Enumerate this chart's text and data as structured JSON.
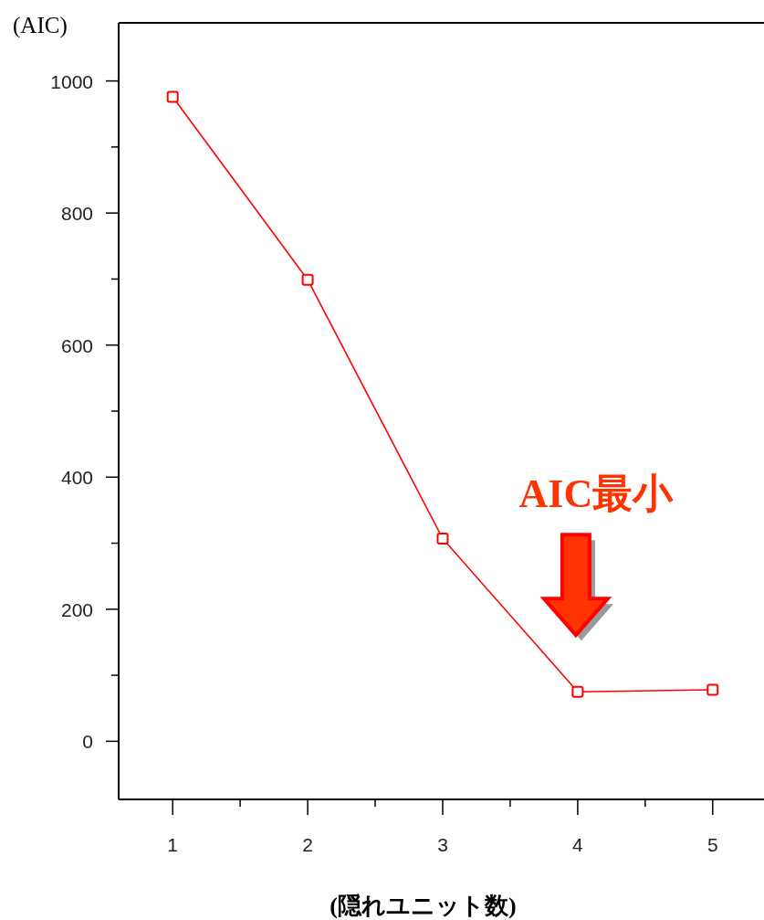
{
  "chart_data": {
    "type": "line",
    "xlabel": "(隠れユニット数)",
    "ylabel": "(AIC)",
    "x": [
      1,
      2,
      3,
      4,
      5
    ],
    "series": [
      {
        "color": "#ff0000",
        "values": [
          976,
          699,
          307,
          75,
          78
        ]
      }
    ],
    "marker": "square",
    "xlim": [
      0.6,
      5.38
    ],
    "xticks": [
      1,
      {
        "value": 1.5,
        "label": null
      },
      2,
      {
        "value": 2.5,
        "label": null
      },
      3,
      {
        "value": 3.5,
        "label": null
      },
      4,
      {
        "value": 4.5,
        "label": null
      },
      5
    ],
    "ylim": [
      -88,
      1088
    ],
    "yticks": [
      0,
      {
        "value": 100,
        "label": null
      },
      200,
      {
        "value": 300,
        "label": null
      },
      400,
      {
        "value": 500,
        "label": null
      },
      600,
      {
        "value": 700,
        "label": null
      },
      800,
      {
        "value": 900,
        "label": null
      },
      1000
    ],
    "annotations": [
      "AIC最小"
    ],
    "grid": false
  }
}
